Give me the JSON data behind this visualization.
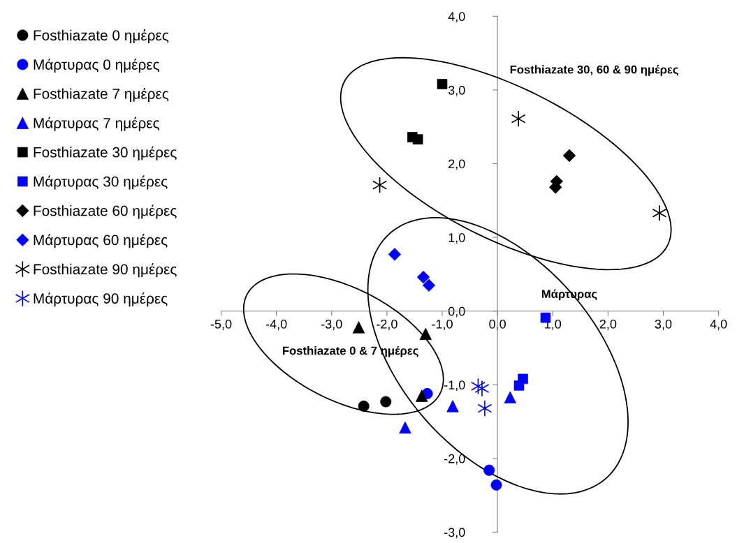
{
  "chart_data": {
    "type": "scatter",
    "xlim": [
      -5,
      4
    ],
    "ylim": [
      -3,
      4
    ],
    "xticks": [
      {
        "value": -5,
        "label": "-5,0"
      },
      {
        "value": -4,
        "label": "-4,0"
      },
      {
        "value": -3,
        "label": "-3,0"
      },
      {
        "value": -2,
        "label": "-2,0"
      },
      {
        "value": -1,
        "label": "-1,0"
      },
      {
        "value": 0,
        "label": "0,0"
      },
      {
        "value": 1,
        "label": "1,0"
      },
      {
        "value": 2,
        "label": "2,0"
      },
      {
        "value": 3,
        "label": "3,0"
      },
      {
        "value": 4,
        "label": "4,0"
      }
    ],
    "yticks": [
      {
        "value": -3,
        "label": "-3,0"
      },
      {
        "value": -2,
        "label": "-2,0"
      },
      {
        "value": -1,
        "label": "-1,0"
      },
      {
        "value": 0,
        "label": "0,0"
      },
      {
        "value": 1,
        "label": "1,0"
      },
      {
        "value": 2,
        "label": "2,0"
      },
      {
        "value": 3,
        "label": "3,0"
      },
      {
        "value": 4,
        "label": "4,0"
      }
    ],
    "grid": false,
    "legend": "left",
    "series": [
      {
        "name": "Fosthiazate 0 ημέρες",
        "color": "#000000",
        "marker": "circle",
        "x": [
          -2.42,
          -2.02
        ],
        "values": [
          -1.29,
          -1.23
        ]
      },
      {
        "name": "Μάρτυρας 0 ημέρες",
        "color": "#0000ff",
        "marker": "circle",
        "x": [
          -1.27,
          -0.15,
          -0.02
        ],
        "values": [
          -1.12,
          -2.16,
          -2.36
        ]
      },
      {
        "name": "Fosthiazate 7 ημέρες",
        "color": "#000000",
        "marker": "triangle",
        "x": [
          -2.51,
          -1.3,
          -1.37
        ],
        "values": [
          -0.22,
          -0.31,
          -1.15
        ]
      },
      {
        "name": "Μάρτυρας 7 ημέρες",
        "color": "#0000ff",
        "marker": "triangle",
        "x": [
          -1.67,
          -0.81,
          0.23
        ],
        "values": [
          -1.58,
          -1.29,
          -1.17
        ]
      },
      {
        "name": "Fosthiazate 30 ημέρες",
        "color": "#000000",
        "marker": "square",
        "x": [
          -1.0,
          -1.54,
          -1.44
        ],
        "values": [
          3.08,
          2.36,
          2.33
        ]
      },
      {
        "name": "Μάρτυρας 30 ημέρες",
        "color": "#0000ff",
        "marker": "square",
        "x": [
          0.87,
          0.39,
          0.46
        ],
        "values": [
          -0.09,
          -1.01,
          -0.92
        ]
      },
      {
        "name": "Fosthiazate 60 ημέρες",
        "color": "#000000",
        "marker": "diamond",
        "x": [
          1.3,
          1.07,
          1.05
        ],
        "values": [
          2.11,
          1.76,
          1.68
        ]
      },
      {
        "name": "Μάρτυρας 60 ημέρες",
        "color": "#0000ff",
        "marker": "diamond",
        "x": [
          -1.86,
          -1.34,
          -1.24
        ],
        "values": [
          0.77,
          0.46,
          0.35
        ]
      },
      {
        "name": "Fosthiazate 90 ημέρες",
        "color": "#000000",
        "marker": "cross",
        "x": [
          0.38,
          -2.13,
          2.93
        ],
        "values": [
          2.61,
          1.71,
          1.33
        ]
      },
      {
        "name": "Μάρτυρας 90 ημέρες",
        "color": "#0000ff",
        "marker": "cross",
        "x": [
          -0.35,
          -0.28,
          -0.23
        ],
        "values": [
          -1.02,
          -1.05,
          -1.32
        ]
      }
    ],
    "annotations": [
      "Fosthiazate 30, 60 & 90 ημέρες",
      "Μάρτυρας",
      "Fosthiazate 0 & 7 ημέρες"
    ]
  }
}
